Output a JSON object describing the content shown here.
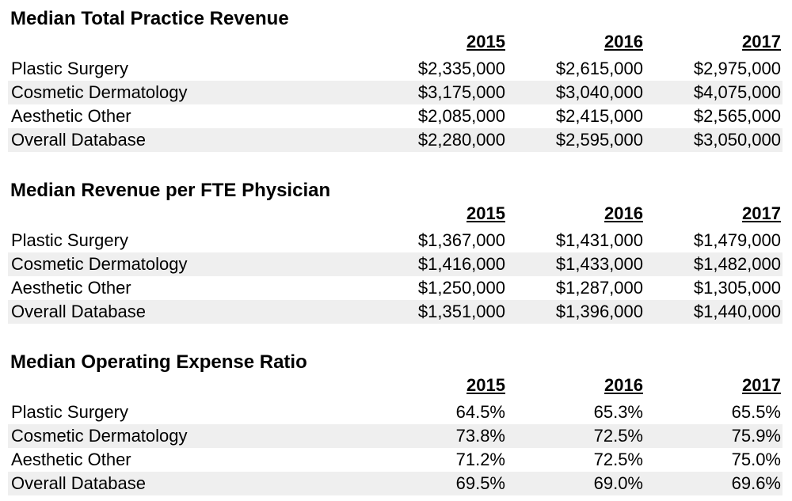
{
  "tables": [
    {
      "title": "Median Total Practice Revenue",
      "years": [
        "2015",
        "2016",
        "2017"
      ],
      "rows": [
        {
          "label": "Plastic Surgery",
          "values": [
            "$2,335,000",
            "$2,615,000",
            "$2,975,000"
          ]
        },
        {
          "label": "Cosmetic Dermatology",
          "values": [
            "$3,175,000",
            "$3,040,000",
            "$4,075,000"
          ]
        },
        {
          "label": "Aesthetic Other",
          "values": [
            "$2,085,000",
            "$2,415,000",
            "$2,565,000"
          ]
        },
        {
          "label": "Overall Database",
          "values": [
            "$2,280,000",
            "$2,595,000",
            "$3,050,000"
          ]
        }
      ]
    },
    {
      "title": "Median Revenue per FTE Physician",
      "years": [
        "2015",
        "2016",
        "2017"
      ],
      "rows": [
        {
          "label": "Plastic Surgery",
          "values": [
            "$1,367,000",
            "$1,431,000",
            "$1,479,000"
          ]
        },
        {
          "label": "Cosmetic Dermatology",
          "values": [
            "$1,416,000",
            "$1,433,000",
            "$1,482,000"
          ]
        },
        {
          "label": "Aesthetic Other",
          "values": [
            "$1,250,000",
            "$1,287,000",
            "$1,305,000"
          ]
        },
        {
          "label": "Overall Database",
          "values": [
            "$1,351,000",
            "$1,396,000",
            "$1,440,000"
          ]
        }
      ]
    },
    {
      "title": "Median Operating Expense Ratio",
      "years": [
        "2015",
        "2016",
        "2017"
      ],
      "rows": [
        {
          "label": "Plastic Surgery",
          "values": [
            "64.5%",
            "65.3%",
            "65.5%"
          ]
        },
        {
          "label": "Cosmetic Dermatology",
          "values": [
            "73.8%",
            "72.5%",
            "75.9%"
          ]
        },
        {
          "label": "Aesthetic Other",
          "values": [
            "71.2%",
            "72.5%",
            "75.0%"
          ]
        },
        {
          "label": "Overall Database",
          "values": [
            "69.5%",
            "69.0%",
            "69.6%"
          ]
        }
      ]
    }
  ]
}
